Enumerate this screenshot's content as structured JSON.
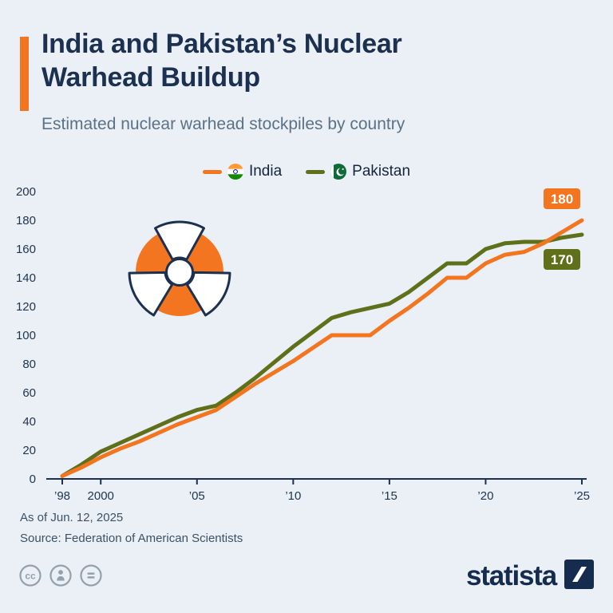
{
  "header": {
    "title": "India and Pakistan’s Nuclear Warhead Buildup",
    "subtitle": "Estimated nuclear warhead stockpiles by country"
  },
  "legend": {
    "items": [
      {
        "label": "India"
      },
      {
        "label": "Pakistan"
      }
    ]
  },
  "chart_data": {
    "type": "line",
    "x": [
      1998,
      1999,
      2000,
      2001,
      2002,
      2003,
      2004,
      2005,
      2006,
      2007,
      2008,
      2009,
      2010,
      2011,
      2012,
      2013,
      2014,
      2015,
      2016,
      2017,
      2018,
      2019,
      2020,
      2021,
      2022,
      2023,
      2024,
      2025
    ],
    "series": [
      {
        "name": "India",
        "color": "#F4751F",
        "end_label": "180",
        "values": [
          2,
          8,
          15,
          21,
          26,
          32,
          38,
          43,
          48,
          57,
          66,
          74,
          82,
          91,
          100,
          100,
          100,
          110,
          119,
          129,
          140,
          140,
          150,
          156,
          158,
          164,
          172,
          180
        ]
      },
      {
        "name": "Pakistan",
        "color": "#60701A",
        "end_label": "170",
        "values": [
          2,
          10,
          19,
          25,
          31,
          37,
          43,
          48,
          51,
          60,
          70,
          81,
          92,
          102,
          112,
          116,
          119,
          122,
          130,
          140,
          150,
          150,
          160,
          164,
          165,
          165,
          168,
          170
        ]
      }
    ],
    "ylim": [
      0,
      200
    ],
    "yticks": [
      0,
      20,
      40,
      60,
      80,
      100,
      120,
      140,
      160,
      180,
      200
    ],
    "xticks": [
      {
        "value": 1998,
        "label": "’98"
      },
      {
        "value": 2000,
        "label": "2000"
      },
      {
        "value": 2005,
        "label": "’05"
      },
      {
        "value": 2010,
        "label": "’10"
      },
      {
        "value": 2015,
        "label": "’15"
      },
      {
        "value": 2020,
        "label": "’20"
      },
      {
        "value": 2025,
        "label": "’25"
      }
    ],
    "grid": false,
    "legend_position": "top",
    "title": "India and Pakistan’s Nuclear Warhead Buildup",
    "xlabel": "",
    "ylabel": ""
  },
  "footer": {
    "as_of": "As of Jun. 12, 2025",
    "source": "Source: Federation of American Scientists"
  },
  "branding": {
    "wordmark": "statista",
    "license_icons": [
      "cc-icon",
      "attribution-person-icon",
      "equals-icon"
    ]
  },
  "colors": {
    "background": "#EAF0F6",
    "accent": "#F4751F",
    "india": "#F4751F",
    "pakistan": "#60701A",
    "title": "#1C3050",
    "subtitle": "#5C7186",
    "axis": "#1C3050",
    "brand_navy": "#152C4E",
    "icon_gray": "#93A1AE"
  }
}
